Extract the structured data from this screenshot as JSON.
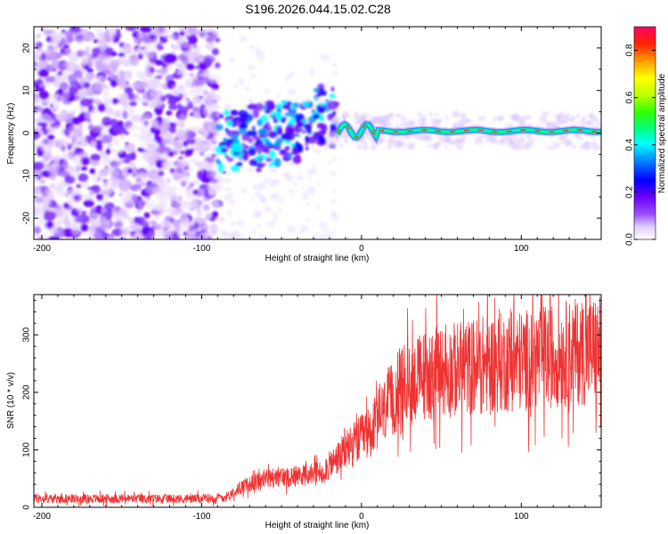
{
  "chart_data": [
    {
      "type": "heatmap",
      "title": "S196.2026.044.15.02.C28",
      "xlabel": "Height of straight line (km)",
      "ylabel": "Frequency (Hz)",
      "xlim": [
        -205,
        150
      ],
      "ylim": [
        -25,
        25
      ],
      "xticks": [
        -200,
        -100,
        0,
        100
      ],
      "yticks": [
        -20,
        -10,
        0,
        10,
        20
      ],
      "colorbar": {
        "label": "Normalized spectral amplitude",
        "range": [
          0.0,
          0.9
        ],
        "ticks": [
          "0.0",
          "0.2",
          "0.4",
          "0.6",
          "0.8"
        ]
      },
      "description_features": {
        "noise_region_x": [
          -205,
          -90
        ],
        "transition_region_x": [
          -90,
          -15
        ],
        "signal_line_x": [
          -15,
          150
        ],
        "signal_line_freq_hz": 0.5
      }
    },
    {
      "type": "line",
      "xlabel": "Height of straight line (km)",
      "ylabel": "SNR (10 * v/v)",
      "xlim": [
        -205,
        150
      ],
      "ylim": [
        0,
        370
      ],
      "xticks": [
        -200,
        -100,
        0,
        100
      ],
      "yticks": [
        0,
        100,
        200,
        300
      ],
      "series": [
        {
          "name": "SNR",
          "color": "#ee3333",
          "trend": {
            "x": [
              -205,
              -150,
              -100,
              -85,
              -75,
              -60,
              -40,
              -25,
              -15,
              -5,
              5,
              15,
              25,
              40,
              60,
              80,
              100,
              120,
              150
            ],
            "y": [
              15,
              15,
              15,
              18,
              35,
              50,
              55,
              60,
              85,
              110,
              130,
              170,
              210,
              230,
              240,
              250,
              255,
              265,
              275
            ]
          }
        }
      ]
    }
  ]
}
